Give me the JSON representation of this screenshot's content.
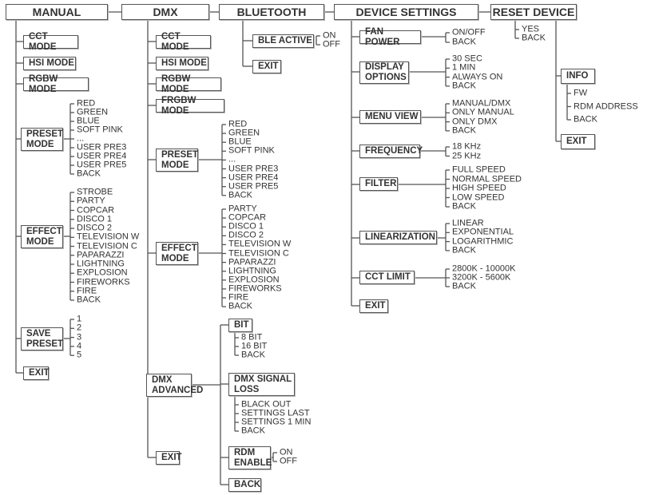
{
  "menu": {
    "manual": {
      "label": "MANUAL",
      "children": [
        {
          "label": "CCT MODE"
        },
        {
          "label": "HSI MODE"
        },
        {
          "label": "RGBW MODE"
        },
        {
          "label": "PRESET\nMODE",
          "items": [
            "RED",
            "GREEN",
            "BLUE",
            "SOFT PINK",
            "...",
            "USER PRE3",
            "USER PRE4",
            "USER PRE5",
            "BACK"
          ]
        },
        {
          "label": "EFFECT\nMODE",
          "items": [
            "STROBE",
            "PARTY",
            "COPCAR",
            "DISCO 1",
            "DISCO 2",
            "TELEVISION W",
            "TELEVISION C",
            "PAPARAZZI",
            "LIGHTNING",
            "EXPLOSION",
            "FIREWORKS",
            "FIRE",
            "BACK"
          ]
        },
        {
          "label": "SAVE\nPRESET",
          "items": [
            "1",
            "2",
            "3",
            "4",
            "5"
          ]
        },
        {
          "label": "EXIT"
        }
      ]
    },
    "dmx": {
      "label": "DMX",
      "children": [
        {
          "label": "CCT MODE"
        },
        {
          "label": "HSI MODE"
        },
        {
          "label": "RGBW MODE"
        },
        {
          "label": "FRGBW MODE"
        },
        {
          "label": "PRESET\nMODE",
          "items": [
            "RED",
            "GREEN",
            "BLUE",
            "SOFT PINK",
            "...",
            "USER PRE3",
            "USER PRE4",
            "USER PRE5",
            "BACK"
          ]
        },
        {
          "label": "EFFECT\nMODE",
          "items": [
            "PARTY",
            "COPCAR",
            "DISCO 1",
            "DISCO 2",
            "TELEVISION W",
            "TELEVISION C",
            "PAPARAZZI",
            "LIGHTNING",
            "EXPLOSION",
            "FIREWORKS",
            "FIRE",
            "BACK"
          ]
        },
        {
          "label": "DMX\nADVANCED",
          "children": [
            {
              "label": "BIT",
              "items": [
                "8 BIT",
                "16 BIT",
                "BACK"
              ]
            },
            {
              "label": "DMX SIGNAL\nLOSS",
              "items": [
                "BLACK OUT",
                "SETTINGS LAST",
                "SETTINGS 1 MIN",
                "BACK"
              ]
            },
            {
              "label": "RDM\nENABLE",
              "items": [
                "ON",
                "OFF"
              ]
            },
            {
              "label": "BACK"
            }
          ]
        },
        {
          "label": "EXIT"
        }
      ]
    },
    "bluetooth": {
      "label": "BLUETOOTH",
      "children": [
        {
          "label": "BLE ACTIVE",
          "items": [
            "ON",
            "OFF"
          ]
        },
        {
          "label": "EXIT"
        }
      ]
    },
    "device": {
      "label": "DEVICE SETTINGS",
      "children": [
        {
          "label": "FAN POWER",
          "items": [
            "ON/OFF",
            "BACK"
          ]
        },
        {
          "label": "DISPLAY\nOPTIONS",
          "items": [
            "30 SEC",
            "1 MIN",
            "ALWAYS ON",
            "BACK"
          ]
        },
        {
          "label": "MENU VIEW",
          "items": [
            "MANUAL/DMX",
            "ONLY MANUAL",
            "ONLY DMX",
            "BACK"
          ]
        },
        {
          "label": "FREQUENCY",
          "items": [
            "18 KHz",
            "25 KHz"
          ]
        },
        {
          "label": "FILTER",
          "items": [
            "FULL SPEED",
            "NORMAL SPEED",
            "HIGH SPEED",
            "LOW SPEED",
            "BACK"
          ]
        },
        {
          "label": "LINEARIZATION",
          "items": [
            "LINEAR",
            "EXPONENTIAL",
            "LOGARITHMIC",
            "BACK"
          ]
        },
        {
          "label": "CCT LIMIT",
          "items": [
            "2800K - 10000K",
            "3200K - 5600K",
            "BACK"
          ]
        },
        {
          "label": "EXIT"
        }
      ]
    },
    "reset": {
      "label": "RESET DEVICE",
      "items": [
        "YES",
        "BACK"
      ],
      "children": [
        {
          "label": "INFO",
          "items": [
            "FW",
            "RDM ADDRESS",
            "BACK"
          ]
        },
        {
          "label": "EXIT"
        }
      ]
    }
  },
  "colors": {
    "line": "#555555",
    "text": "#333333"
  }
}
